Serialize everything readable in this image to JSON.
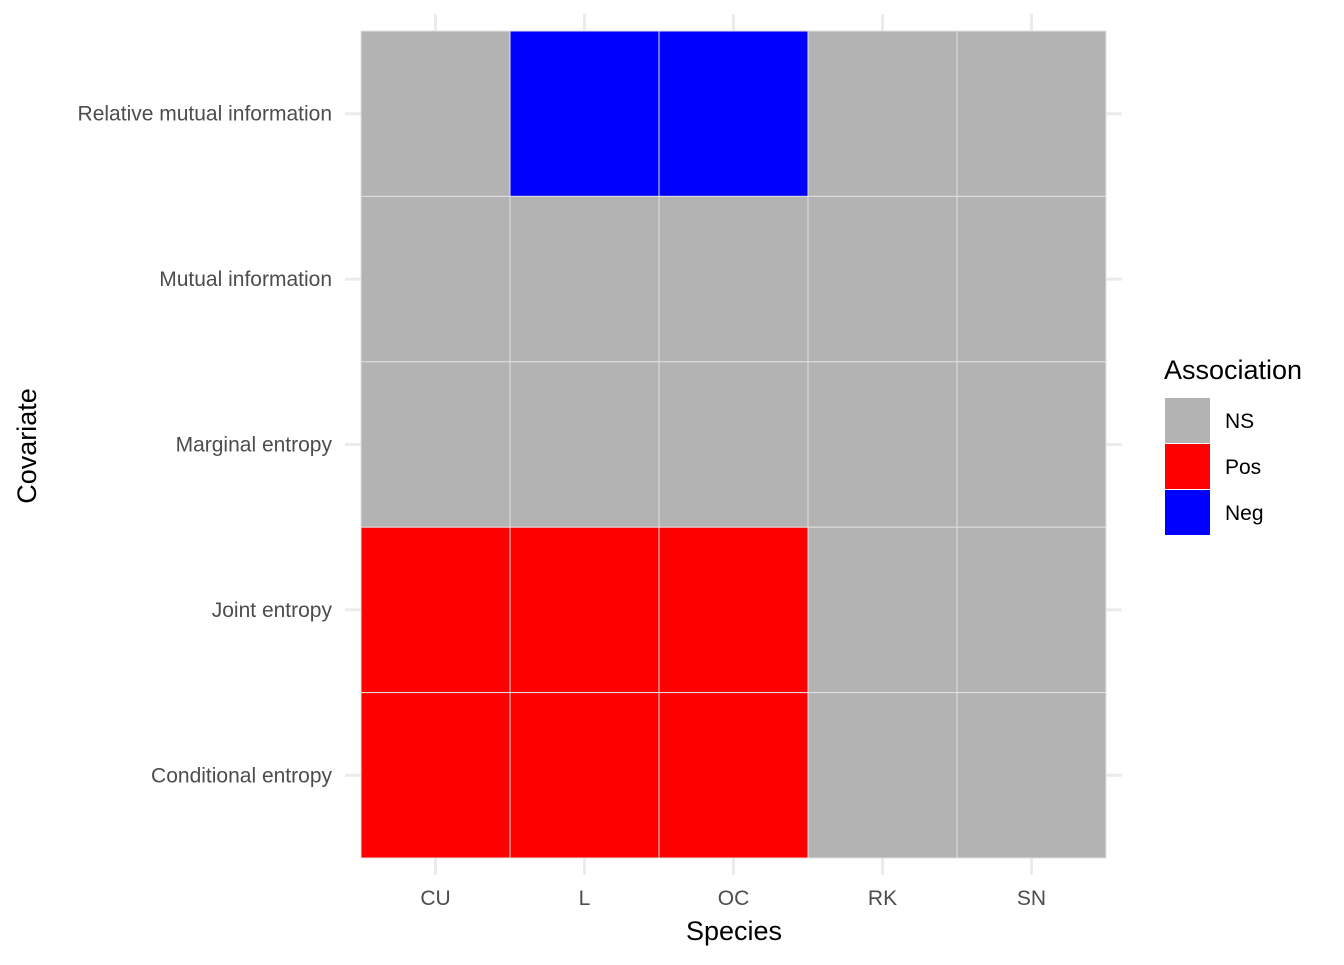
{
  "chart_data": {
    "type": "heatmap",
    "xlabel": "Species",
    "ylabel": "Covariate",
    "x_categories": [
      "CU",
      "L",
      "OC",
      "RK",
      "SN"
    ],
    "y_categories": [
      "Relative mutual information",
      "Mutual information",
      "Marginal entropy",
      "Joint entropy",
      "Conditional entropy"
    ],
    "values": [
      [
        "NS",
        "Neg",
        "Neg",
        "NS",
        "NS"
      ],
      [
        "NS",
        "NS",
        "NS",
        "NS",
        "NS"
      ],
      [
        "NS",
        "NS",
        "NS",
        "NS",
        "NS"
      ],
      [
        "Pos",
        "Pos",
        "Pos",
        "NS",
        "NS"
      ],
      [
        "Pos",
        "Pos",
        "Pos",
        "NS",
        "NS"
      ]
    ],
    "legend": {
      "title": "Association",
      "position": "right",
      "entries": [
        {
          "label": "NS",
          "color": "#b3b3b3"
        },
        {
          "label": "Pos",
          "color": "#ff0000"
        },
        {
          "label": "Neg",
          "color": "#0000ff"
        }
      ]
    },
    "grid": true
  }
}
